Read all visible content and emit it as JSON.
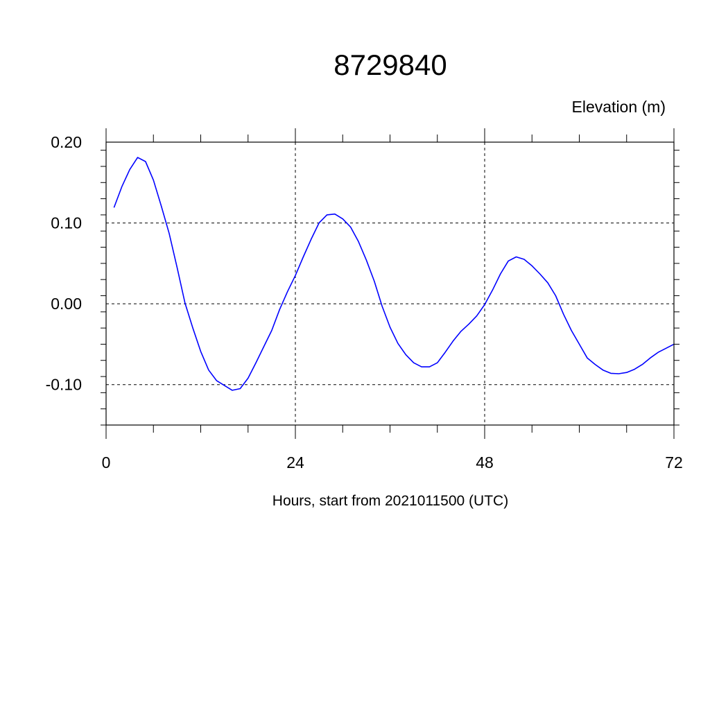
{
  "chart_data": {
    "type": "line",
    "title": "8729840",
    "ylabel": "Elevation (m)",
    "xlabel": "Hours, start from 2021011500 (UTC)",
    "xlim": [
      0,
      72
    ],
    "ylim": [
      -0.15,
      0.2
    ],
    "x_ticks": [
      0,
      24,
      48,
      72
    ],
    "x_tick_labels": [
      "0",
      "24",
      "48",
      "72"
    ],
    "x_minor_step": 6,
    "y_ticks": [
      0.2,
      0.1,
      0.0,
      -0.1
    ],
    "y_tick_labels": [
      "0.20",
      "0.10",
      "0.00",
      "-0.10"
    ],
    "y_minor_step": 0.02,
    "grid": true,
    "line_color": "#0000ff",
    "series": [
      {
        "x": [
          1,
          2,
          3,
          4,
          5,
          6,
          7,
          8,
          9,
          10,
          11,
          12,
          13,
          14,
          15,
          16,
          17,
          18,
          19,
          20,
          21,
          22,
          23,
          24,
          25,
          26,
          27,
          28,
          29,
          30,
          31,
          32,
          33,
          34,
          35,
          36,
          37,
          38,
          39,
          40,
          41,
          42,
          43,
          44,
          45,
          46,
          47,
          48,
          49,
          50,
          51,
          52,
          53,
          54,
          55,
          56,
          57,
          58,
          59,
          60,
          61,
          62,
          63,
          64,
          65,
          66,
          67,
          68,
          69,
          70,
          71,
          72
        ],
        "y": [
          0.119,
          0.145,
          0.166,
          0.181,
          0.176,
          0.153,
          0.121,
          0.087,
          0.045,
          0.001,
          -0.03,
          -0.059,
          -0.082,
          -0.095,
          -0.101,
          -0.107,
          -0.105,
          -0.092,
          -0.073,
          -0.053,
          -0.033,
          -0.007,
          0.015,
          0.035,
          0.058,
          0.08,
          0.1,
          0.11,
          0.111,
          0.105,
          0.095,
          0.077,
          0.054,
          0.028,
          -0.003,
          -0.029,
          -0.049,
          -0.063,
          -0.073,
          -0.078,
          -0.078,
          -0.073,
          -0.06,
          -0.046,
          -0.034,
          -0.025,
          -0.015,
          -0.001,
          0.017,
          0.037,
          0.053,
          0.058,
          0.055,
          0.047,
          0.037,
          0.026,
          0.01,
          -0.013,
          -0.033,
          -0.05,
          -0.067,
          -0.075,
          -0.082,
          -0.086,
          -0.0865,
          -0.085,
          -0.081,
          -0.075,
          -0.067,
          -0.06,
          -0.055,
          -0.05
        ]
      }
    ]
  }
}
